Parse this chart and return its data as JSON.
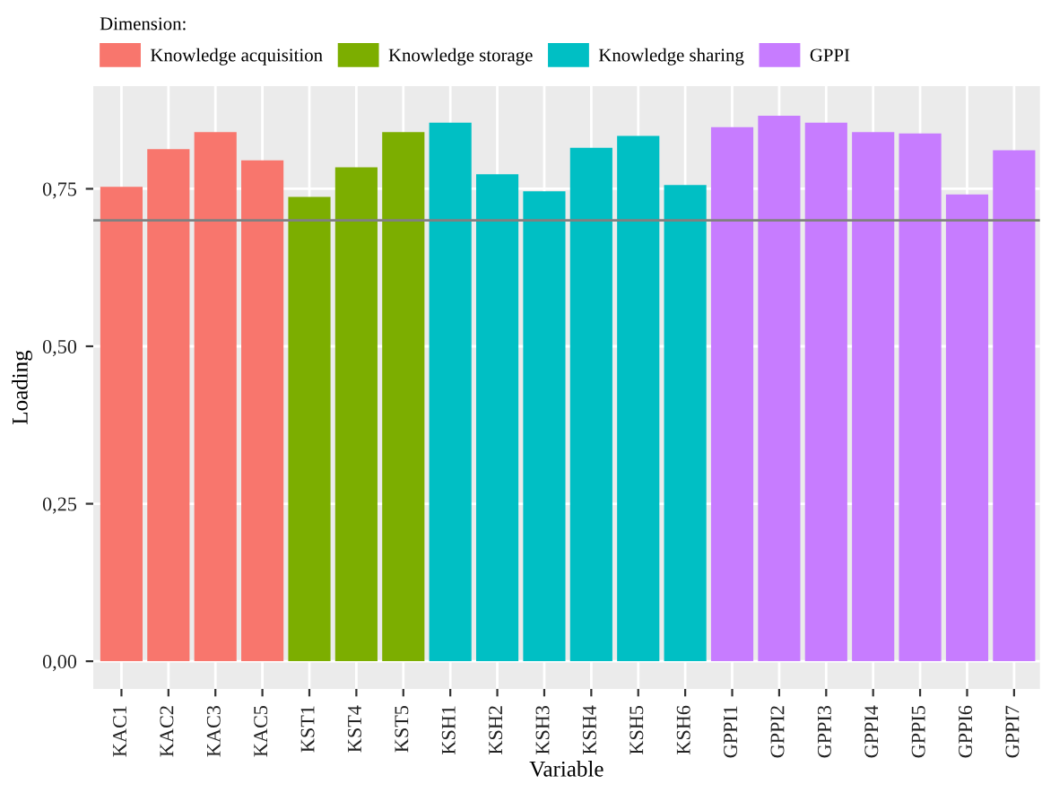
{
  "chart_data": {
    "type": "bar",
    "xlabel": "Variable",
    "ylabel": "Loading",
    "legend_title": "Dimension:",
    "categories": [
      "KAC1",
      "KAC2",
      "KAC3",
      "KAC5",
      "KST1",
      "KST4",
      "KST5",
      "KSH1",
      "KSH2",
      "KSH3",
      "KSH4",
      "KSH5",
      "KSH6",
      "GPPI1",
      "GPPI2",
      "GPPI3",
      "GPPI4",
      "GPPI5",
      "GPPI6",
      "GPPI7"
    ],
    "series": [
      {
        "name": "Knowledge acquisition",
        "color": "#f8766d",
        "values": [
          0.753,
          0.813,
          0.84,
          0.795,
          null,
          null,
          null,
          null,
          null,
          null,
          null,
          null,
          null,
          null,
          null,
          null,
          null,
          null,
          null,
          null
        ]
      },
      {
        "name": "Knowledge storage",
        "color": "#7cae00",
        "values": [
          null,
          null,
          null,
          null,
          0.737,
          0.784,
          0.84,
          null,
          null,
          null,
          null,
          null,
          null,
          null,
          null,
          null,
          null,
          null,
          null,
          null
        ]
      },
      {
        "name": "Knowledge sharing",
        "color": "#00bfc4",
        "values": [
          null,
          null,
          null,
          null,
          null,
          null,
          null,
          0.855,
          0.773,
          0.746,
          0.815,
          0.834,
          0.756,
          null,
          null,
          null,
          null,
          null,
          null,
          null
        ]
      },
      {
        "name": "GPPI",
        "color": "#c77cff",
        "values": [
          null,
          null,
          null,
          null,
          null,
          null,
          null,
          null,
          null,
          null,
          null,
          null,
          null,
          0.848,
          0.866,
          0.855,
          0.84,
          0.838,
          0.741,
          0.811
        ]
      }
    ],
    "ylim": [
      -0.044,
      0.913
    ],
    "yticks": [
      {
        "value": 0,
        "label": "0,00"
      },
      {
        "value": 0.25,
        "label": "0,25"
      },
      {
        "value": 0.5,
        "label": "0,50"
      },
      {
        "value": 0.75,
        "label": "0,75"
      }
    ],
    "ref_lines": [
      {
        "axis": "y",
        "value": 0.7,
        "label": null,
        "color": "#808080"
      }
    ],
    "grid": true,
    "legend": "top left"
  }
}
